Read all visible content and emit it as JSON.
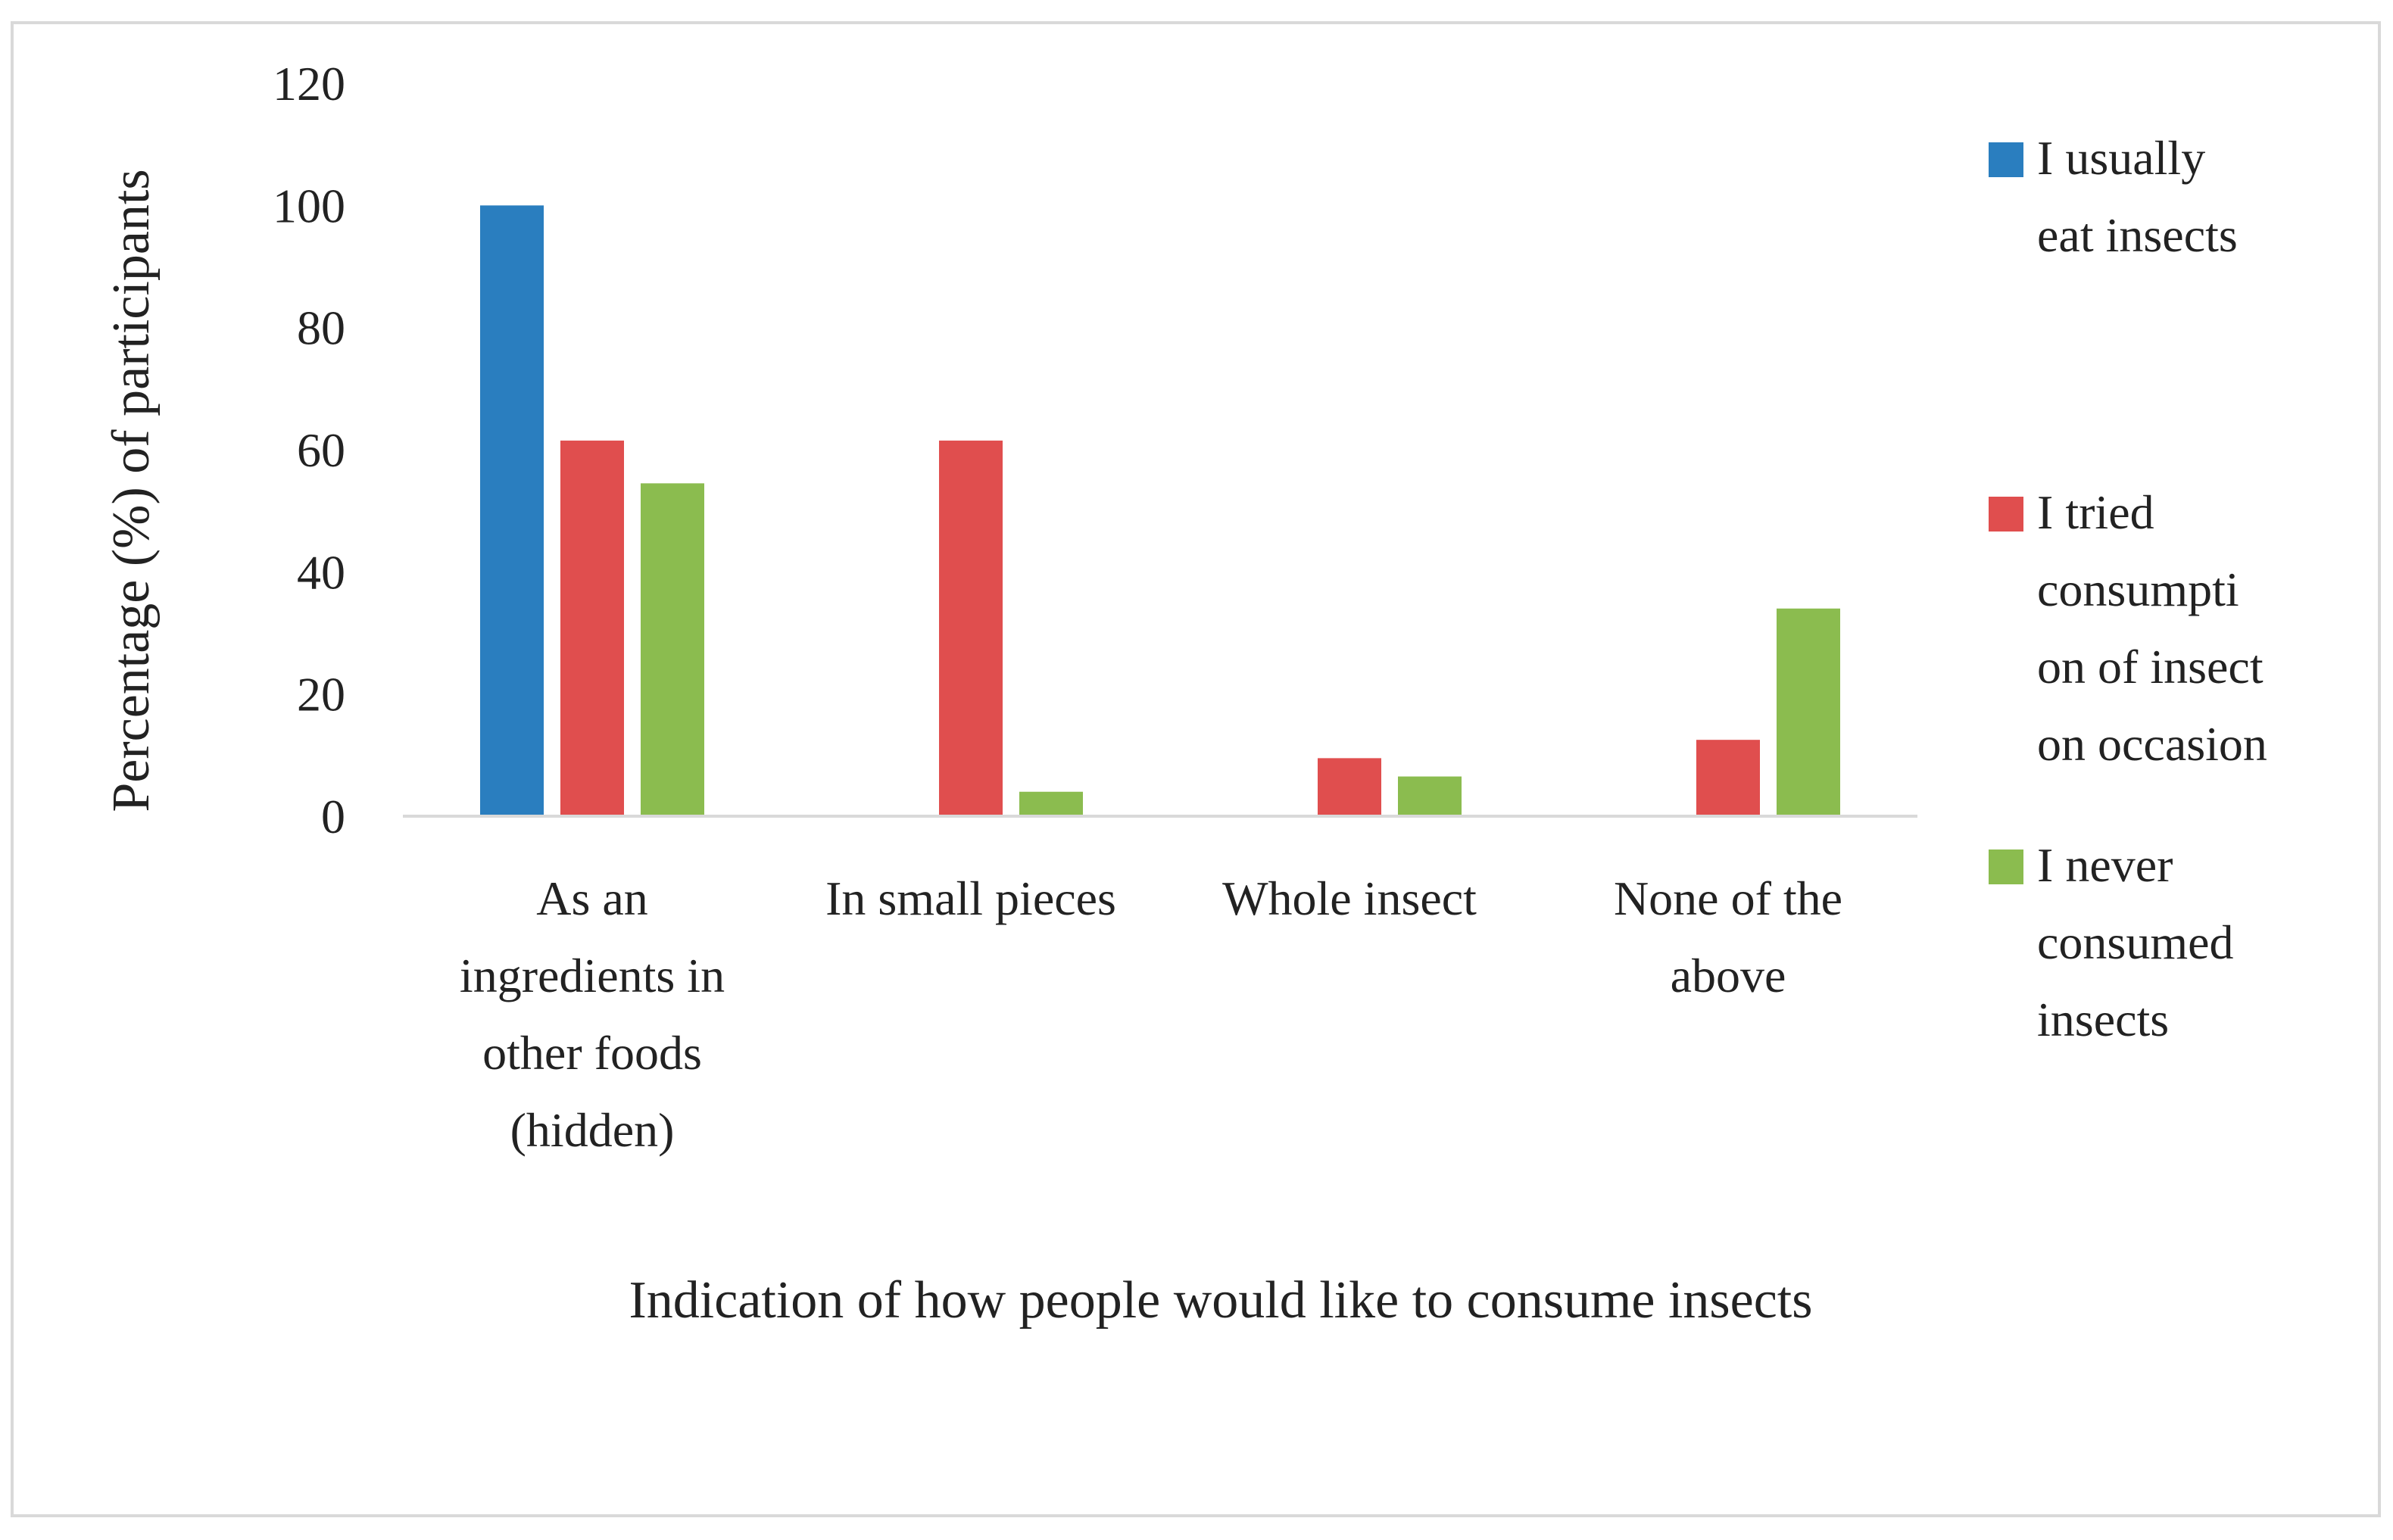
{
  "chart_data": {
    "type": "bar",
    "title": "",
    "xlabel": "Indication of how people would like to consume insects",
    "ylabel": "Percentage (%) of participants",
    "ylim": [
      0,
      120
    ],
    "yticks": [
      0,
      20,
      40,
      60,
      80,
      100,
      120
    ],
    "grid": false,
    "legend_position": "right",
    "categories": [
      [
        "As an",
        "ingredients in",
        "other foods",
        "(hidden)"
      ],
      [
        "In small pieces"
      ],
      [
        "Whole insect"
      ],
      [
        "None of the",
        "above"
      ]
    ],
    "series": [
      {
        "name": [
          "I usually",
          "eat insects"
        ],
        "color": "#2a7ebf",
        "values": [
          100,
          0,
          0,
          0
        ]
      },
      {
        "name": [
          "I tried",
          "consumpti",
          "on of insect",
          "on occasion"
        ],
        "color": "#e04e4e",
        "values": [
          61.5,
          61.5,
          9.5,
          12.5
        ]
      },
      {
        "name": [
          "I never",
          "consumed",
          "insects"
        ],
        "color": "#8bbc4f",
        "values": [
          54.5,
          4,
          6.5,
          34
        ]
      }
    ]
  }
}
